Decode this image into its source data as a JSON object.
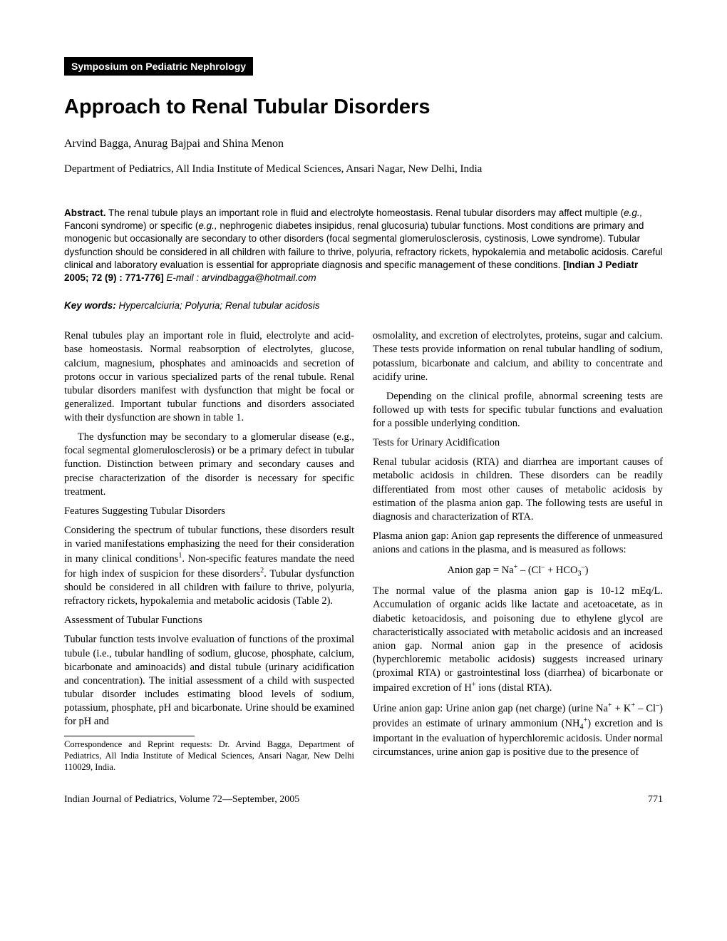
{
  "header": {
    "symposium": "Symposium on Pediatric Nephrology",
    "title": "Approach to Renal Tubular Disorders",
    "authors": "Arvind Bagga, Anurag Bajpai and Shina Menon",
    "affiliation": "Department of Pediatrics, All India Institute of Medical Sciences, Ansari Nagar, New Delhi, India"
  },
  "abstract": {
    "label": "Abstract.",
    "text_before_eg1": " The renal tubule plays an important role in fluid and electrolyte homeostasis. Renal tubular disorders may affect multiple (",
    "eg1": "e.g.,",
    "text_mid1": " Fanconi syndrome) or specific (",
    "eg2": "e.g.,",
    "text_after": " nephrogenic diabetes insipidus, renal glucosuria) tubular functions. Most conditions are primary and monogenic but occasionally are secondary to other disorders (focal segmental glomerulosclerosis, cystinosis, Lowe syndrome). Tubular dysfunction should be considered in all children with failure to thrive, polyuria, refractory rickets, hypokalemia and metabolic acidosis. Careful clinical and laboratory evaluation is essential for appropriate diagnosis and specific management of these conditions. ",
    "citation": "[Indian J Pediatr 2005; 72 (9) : 771-776]",
    "email_label": " E-mail : ",
    "email": "arvindbagga@hotmail.com"
  },
  "keywords": {
    "label": "Key words:",
    "text": " Hypercalciuria; Polyuria; Renal tubular acidosis"
  },
  "body": {
    "p1": "Renal tubules play an important role in fluid, electrolyte and acid-base homeostasis. Normal reabsorption of electrolytes, glucose, calcium, magnesium, phosphates and aminoacids and secretion of protons occur in various specialized parts of the renal tubule. Renal tubular disorders manifest with dysfunction that might be focal or generalized. Important tubular functions and disorders associated with their dysfunction are shown in table 1.",
    "p2": "The dysfunction may be secondary to a glomerular disease (e.g., focal segmental glomerulosclerosis) or be a primary defect in tubular function. Distinction between primary and secondary causes and precise characterization of the disorder is necessary for specific treatment.",
    "h1": "Features Suggesting Tubular Disorders",
    "p3a": "Considering the spectrum of tubular functions, these disorders result in varied manifestations emphasizing the need for their consideration in many clinical conditions",
    "p3b": ". Non-specific features mandate the need for high index of suspicion for these disorders",
    "p3c": ". Tubular dysfunction should be considered in all children with failure to thrive, polyuria, refractory rickets, hypokalemia and metabolic acidosis (Table 2).",
    "h2": "Assessment of Tubular Functions",
    "p4": "Tubular function tests involve evaluation of functions of the proximal tubule (i.e., tubular handling of sodium, glucose, phosphate, calcium, bicarbonate and aminoacids) and distal tubule (urinary acidification and concentration). The initial assessment of a child with suspected tubular disorder includes estimating blood levels of sodium, potassium, phosphate, pH and bicarbonate. Urine should be examined for pH and",
    "correspondence": "Correspondence and Reprint requests: Dr. Arvind Bagga, Department of Pediatrics, All India Institute of Medical Sciences, Ansari Nagar, New Delhi 110029, India.",
    "p5": "osmolality, and excretion of electrolytes, proteins, sugar and calcium. These tests provide information on renal tubular handling of sodium, potassium, bicarbonate and calcium, and ability to concentrate and acidify urine.",
    "p6": "Depending on the clinical profile, abnormal screening tests are followed up with tests for specific tubular functions and evaluation for a possible underlying condition.",
    "h3": "Tests for Urinary Acidification",
    "p7": "Renal tubular acidosis (RTA) and diarrhea are important causes of metabolic acidosis in children. These disorders can be readily differentiated from most other causes of metabolic acidosis by estimation of the plasma anion gap. The following tests are useful in diagnosis and characterization of RTA.",
    "p8": "Plasma anion gap: Anion gap represents the difference of unmeasured anions and cations in the plasma, and is measured as follows:",
    "formula_pre": "Anion gap = Na",
    "formula_mid1": " – (Cl",
    "formula_mid2": " + HCO",
    "formula_end": ")",
    "p9a": "The normal value of the plasma anion gap is 10-12 mEq/L. Accumulation of organic acids like lactate and acetoacetate, as in diabetic ketoacidosis, and poisoning due to ethylene glycol are characteristically associated with metabolic acidosis and an increased anion gap. Normal anion gap in the presence of acidosis (hyperchloremic metabolic acidosis) suggests increased urinary (proximal RTA) or gastrointestinal loss (diarrhea) of bicarbonate or impaired excretion of H",
    "p9b": " ions (distal RTA).",
    "p10a": "Urine anion gap: Urine anion gap (net charge) (urine Na",
    "p10b": " + K",
    "p10c": " – Cl",
    "p10d": ") provides an estimate of urinary ammonium (NH",
    "p10e": ") excretion and is important in the evaluation of hyperchloremic acidosis. Under normal circumstances, urine anion gap is positive due to the presence of"
  },
  "footer": {
    "journal": "Indian Journal of Pediatrics, Volume 72—September, 2005",
    "page": "771"
  },
  "superscripts": {
    "ref1": "1",
    "ref2": "2",
    "plus": "+",
    "minus": "–",
    "sub3": "3",
    "sub4": "4"
  }
}
